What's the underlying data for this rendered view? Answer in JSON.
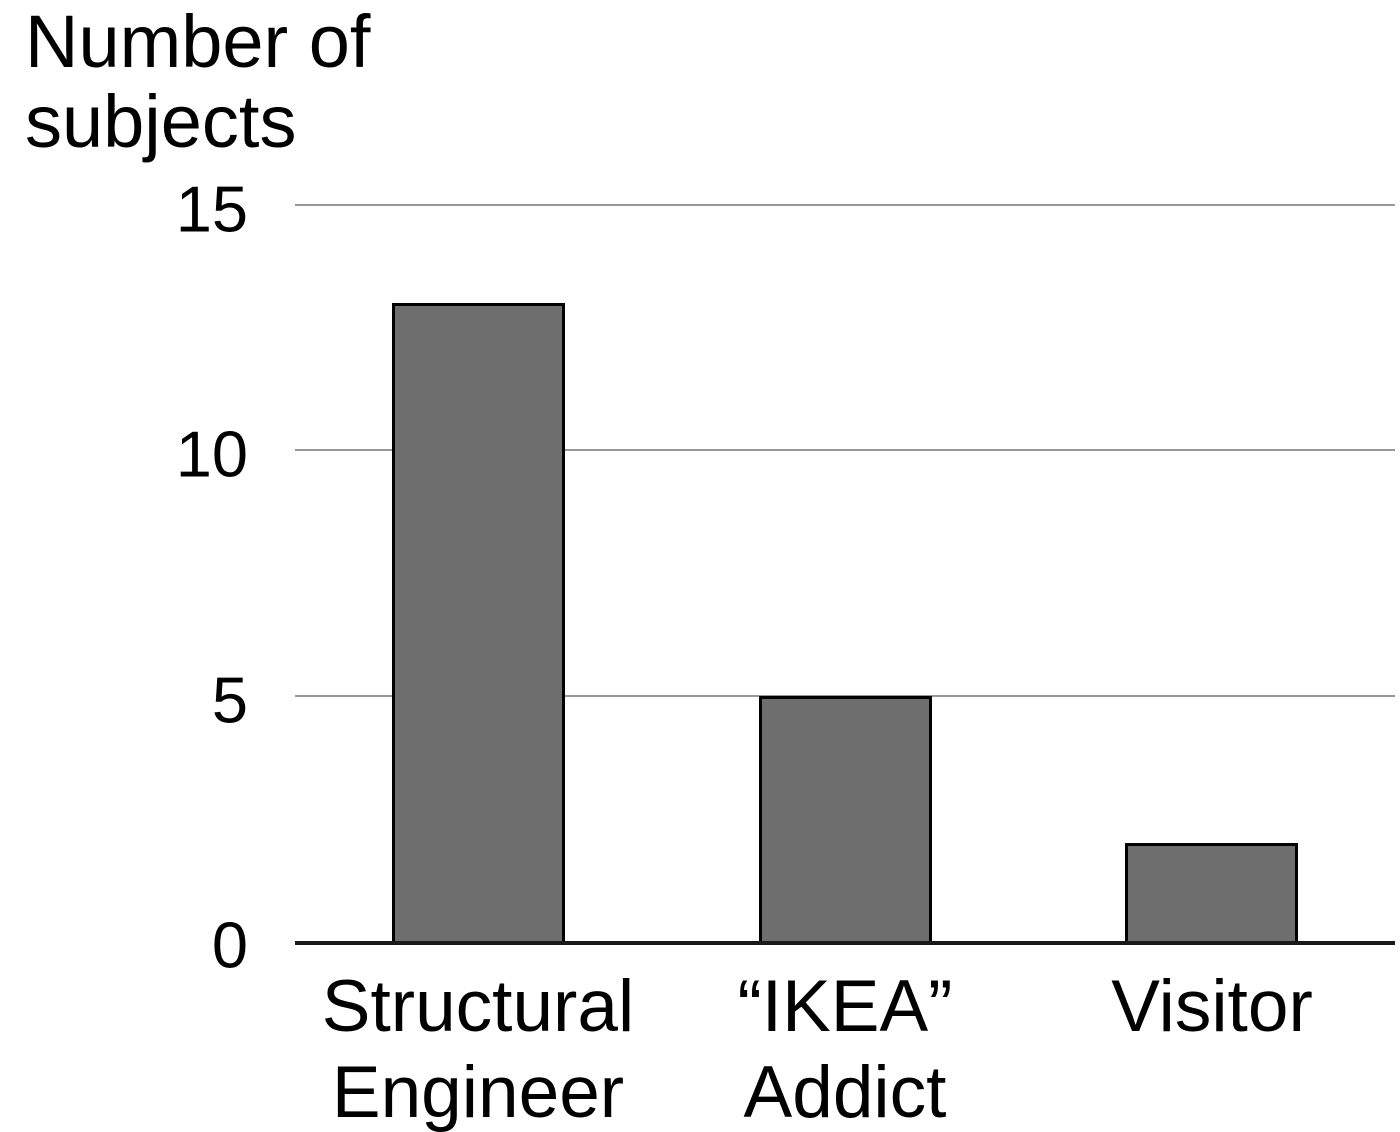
{
  "chart_data": {
    "type": "bar",
    "title": "",
    "ylabel": "Number of subjects",
    "ylabel_lines": [
      "Number of",
      "subjects"
    ],
    "xlabel": "",
    "categories": [
      "Structural Engineer",
      "“IKEA” Addict",
      "Visitor"
    ],
    "category_lines": [
      [
        "Structural",
        "Engineer"
      ],
      [
        "“IKEA”",
        "Addict"
      ],
      [
        "Visitor"
      ]
    ],
    "values": [
      13,
      5,
      2
    ],
    "yticks": [
      0,
      5,
      10,
      15
    ],
    "ylim": [
      0,
      15
    ],
    "gridline_values": [
      5,
      10,
      15
    ],
    "grid": true,
    "legend": false,
    "colors": {
      "bar_fill": "#6e6e6e",
      "bar_border": "#000000",
      "gridline": "#999999",
      "axis": "#1a1a1a",
      "text": "#000000",
      "background": "#ffffff"
    }
  }
}
